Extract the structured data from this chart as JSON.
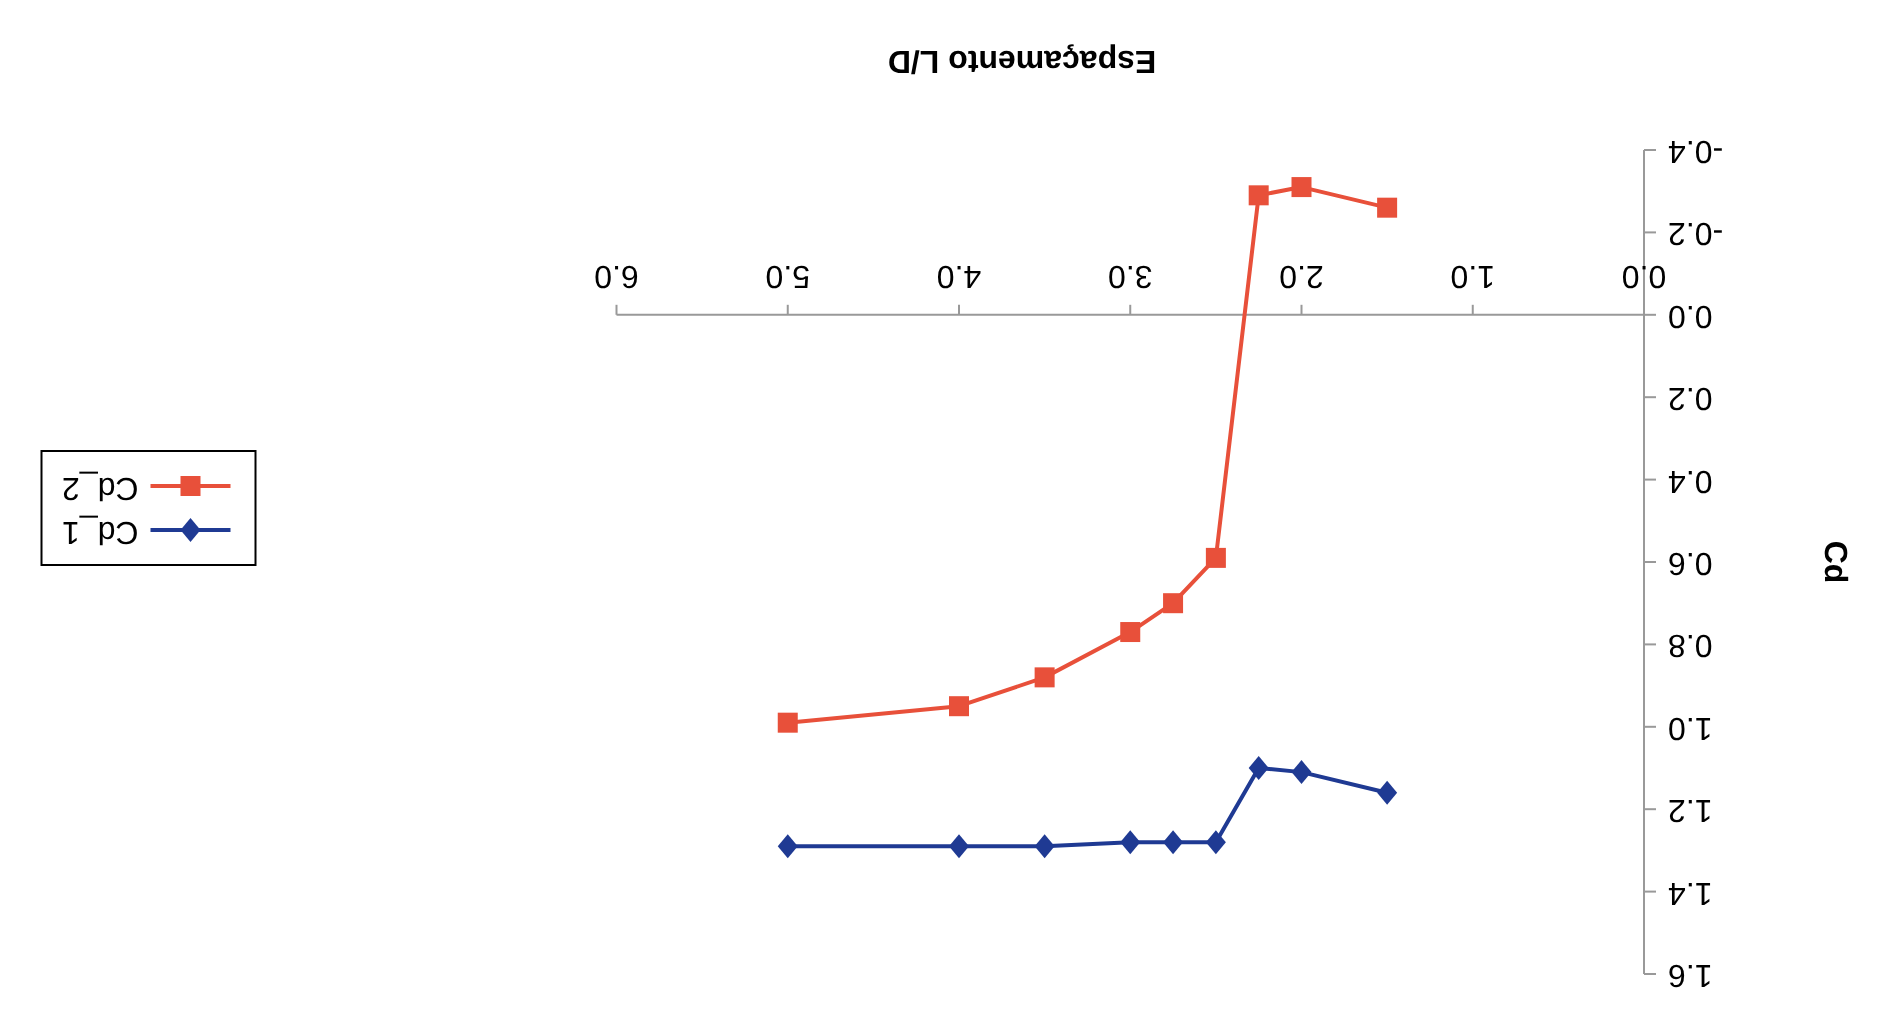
{
  "chart_data": {
    "type": "line",
    "xlabel": "Espaçamento L/D",
    "ylabel": "Cd",
    "x": [
      1.5,
      2.0,
      2.25,
      2.5,
      2.75,
      3.0,
      3.5,
      4.0,
      5.0
    ],
    "series": [
      {
        "name": "Cd_1",
        "color": "#1f3a93",
        "marker": "diamond",
        "values": [
          1.16,
          1.11,
          1.1,
          1.28,
          1.28,
          1.28,
          1.29,
          1.29,
          1.29
        ]
      },
      {
        "name": "Cd_2",
        "color": "#e8503a",
        "marker": "square",
        "values": [
          -0.26,
          -0.31,
          -0.29,
          0.59,
          0.7,
          0.77,
          0.88,
          0.95,
          0.99
        ]
      }
    ],
    "xlim": [
      6,
      0
    ],
    "xticks": [
      {
        "value": 0,
        "label": "0.0"
      },
      {
        "value": 1,
        "label": "1.0"
      },
      {
        "value": 2,
        "label": "2.0"
      },
      {
        "value": 3,
        "label": "3.0"
      },
      {
        "value": 4,
        "label": "4.0"
      },
      {
        "value": 5,
        "label": "5.0"
      },
      {
        "value": 6,
        "label": "6.0"
      }
    ],
    "ylim": [
      1.6,
      -0.4
    ],
    "yticks": [
      {
        "value": -0.4,
        "label": "-0.4"
      },
      {
        "value": -0.2,
        "label": "-0.2"
      },
      {
        "value": 0,
        "label": "0.0"
      },
      {
        "value": 0.2,
        "label": "0.2"
      },
      {
        "value": 0.4,
        "label": "0.4"
      },
      {
        "value": 0.6,
        "label": "0.6"
      },
      {
        "value": 0.8,
        "label": "0.8"
      },
      {
        "value": 1.0,
        "label": "1.0"
      },
      {
        "value": 1.2,
        "label": "1.2"
      },
      {
        "value": 1.4,
        "label": "1.4"
      },
      {
        "value": 1.6,
        "label": "1.6"
      }
    ],
    "grid": false,
    "legend": "left"
  }
}
